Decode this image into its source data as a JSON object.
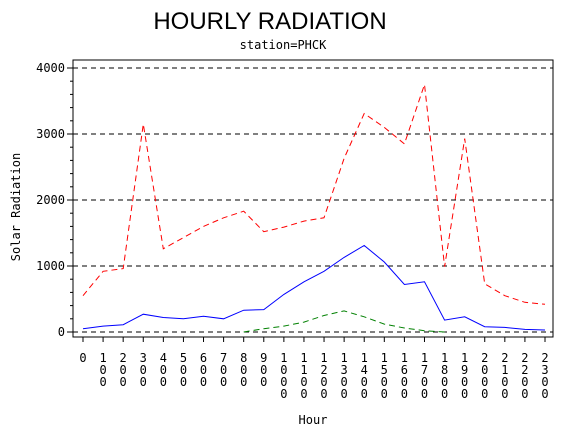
{
  "chart_data": {
    "type": "line",
    "title": "HOURLY RADIATION",
    "subtitle": "station=PHCK",
    "xlabel": "Hour",
    "ylabel": "Solar Radiation",
    "ylim": [
      0,
      4000
    ],
    "y_ticks": [
      "0",
      "1000",
      "2000",
      "3000",
      "4000"
    ],
    "grid": "horizontal dashed at y ticks",
    "x": [
      0,
      100,
      200,
      300,
      400,
      500,
      600,
      700,
      800,
      900,
      1000,
      1100,
      1200,
      1300,
      1400,
      1500,
      1600,
      1700,
      1800,
      1900,
      2000,
      2100,
      2200,
      2300
    ],
    "x_tick_labels": [
      "0",
      "100",
      "200",
      "300",
      "400",
      "500",
      "600",
      "700",
      "800",
      "900",
      "1000",
      "1100",
      "1200",
      "1300",
      "1400",
      "1500",
      "1600",
      "1700",
      "1800",
      "1900",
      "2000",
      "2100",
      "2200",
      "2300"
    ],
    "series": [
      {
        "color": "#ff0000",
        "dash": "dashed",
        "values": [
          550,
          920,
          960,
          3150,
          1260,
          1430,
          1600,
          1730,
          1830,
          1520,
          1590,
          1680,
          1730,
          2630,
          3310,
          3100,
          2850,
          3750,
          990,
          2930,
          730,
          550,
          450,
          420
        ]
      },
      {
        "color": "#0000ff",
        "dash": "solid",
        "values": [
          50,
          90,
          110,
          270,
          220,
          200,
          240,
          200,
          330,
          340,
          570,
          760,
          920,
          1130,
          1310,
          1060,
          720,
          760,
          180,
          230,
          80,
          70,
          40,
          30
        ]
      },
      {
        "color": "#008000",
        "dash": "dashed",
        "values": [
          null,
          null,
          null,
          null,
          null,
          null,
          null,
          null,
          0,
          50,
          90,
          150,
          250,
          320,
          230,
          120,
          60,
          20,
          0,
          null,
          null,
          null,
          null,
          null
        ]
      }
    ]
  }
}
